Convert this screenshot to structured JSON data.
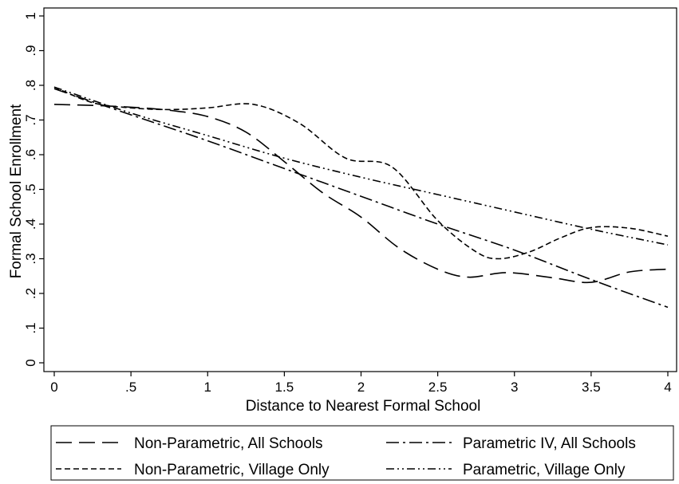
{
  "chart_data": {
    "type": "line",
    "xlabel": "Distance to Nearest Formal School",
    "ylabel": "Formal School Enrollment",
    "xlim": [
      0,
      4
    ],
    "ylim": [
      0,
      1
    ],
    "x_ticks": [
      {
        "value": 0,
        "label": "0"
      },
      {
        "value": 0.5,
        "label": ".5"
      },
      {
        "value": 1,
        "label": "1"
      },
      {
        "value": 1.5,
        "label": "1.5"
      },
      {
        "value": 2,
        "label": "2"
      },
      {
        "value": 2.5,
        "label": "2.5"
      },
      {
        "value": 3,
        "label": "3"
      },
      {
        "value": 3.5,
        "label": "3.5"
      },
      {
        "value": 4,
        "label": "4"
      }
    ],
    "y_ticks": [
      {
        "value": 0,
        "label": "0"
      },
      {
        "value": 0.1,
        "label": ".1"
      },
      {
        "value": 0.2,
        "label": ".2"
      },
      {
        "value": 0.3,
        "label": ".3"
      },
      {
        "value": 0.4,
        "label": ".4"
      },
      {
        "value": 0.5,
        "label": ".5"
      },
      {
        "value": 0.6,
        "label": ".6"
      },
      {
        "value": 0.7,
        "label": ".7"
      },
      {
        "value": 0.8,
        "label": ".8"
      },
      {
        "value": 0.9,
        "label": ".9"
      },
      {
        "value": 1,
        "label": "1"
      }
    ],
    "grid": false,
    "legend_position": "bottom",
    "series": [
      {
        "name": "Non-Parametric, All Schools",
        "dash": "long-dash",
        "x": [
          0,
          0.25,
          0.5,
          0.75,
          1.0,
          1.25,
          1.5,
          1.75,
          2.0,
          2.25,
          2.5,
          2.7,
          2.95,
          3.25,
          3.5,
          3.75,
          4.0
        ],
        "y": [
          0.745,
          0.742,
          0.737,
          0.728,
          0.71,
          0.665,
          0.58,
          0.49,
          0.42,
          0.33,
          0.27,
          0.247,
          0.26,
          0.245,
          0.232,
          0.262,
          0.27
        ]
      },
      {
        "name": "Parametric IV, All Schools",
        "dash": "dash-dot",
        "x": [
          0,
          0.5,
          1.0,
          1.5,
          2.0,
          2.5,
          3.0,
          3.5,
          4.0
        ],
        "y": [
          0.79,
          0.715,
          0.64,
          0.56,
          0.48,
          0.4,
          0.325,
          0.24,
          0.16
        ]
      },
      {
        "name": "Non-Parametric, Village Only",
        "dash": "short-dash",
        "x": [
          0,
          0.25,
          0.5,
          0.75,
          1.0,
          1.3,
          1.6,
          1.9,
          2.2,
          2.5,
          2.75,
          2.9,
          3.1,
          3.3,
          3.5,
          3.75,
          4.0
        ],
        "y": [
          0.795,
          0.75,
          0.735,
          0.73,
          0.735,
          0.745,
          0.69,
          0.59,
          0.565,
          0.41,
          0.32,
          0.3,
          0.32,
          0.36,
          0.39,
          0.388,
          0.365
        ]
      },
      {
        "name": "Parametric, Village Only",
        "dash": "dash-dot-dot",
        "x": [
          0,
          0.5,
          1.0,
          1.5,
          2.0,
          2.5,
          3.0,
          3.5,
          4.0
        ],
        "y": [
          0.795,
          0.72,
          0.655,
          0.59,
          0.535,
          0.485,
          0.435,
          0.385,
          0.34
        ]
      }
    ]
  }
}
